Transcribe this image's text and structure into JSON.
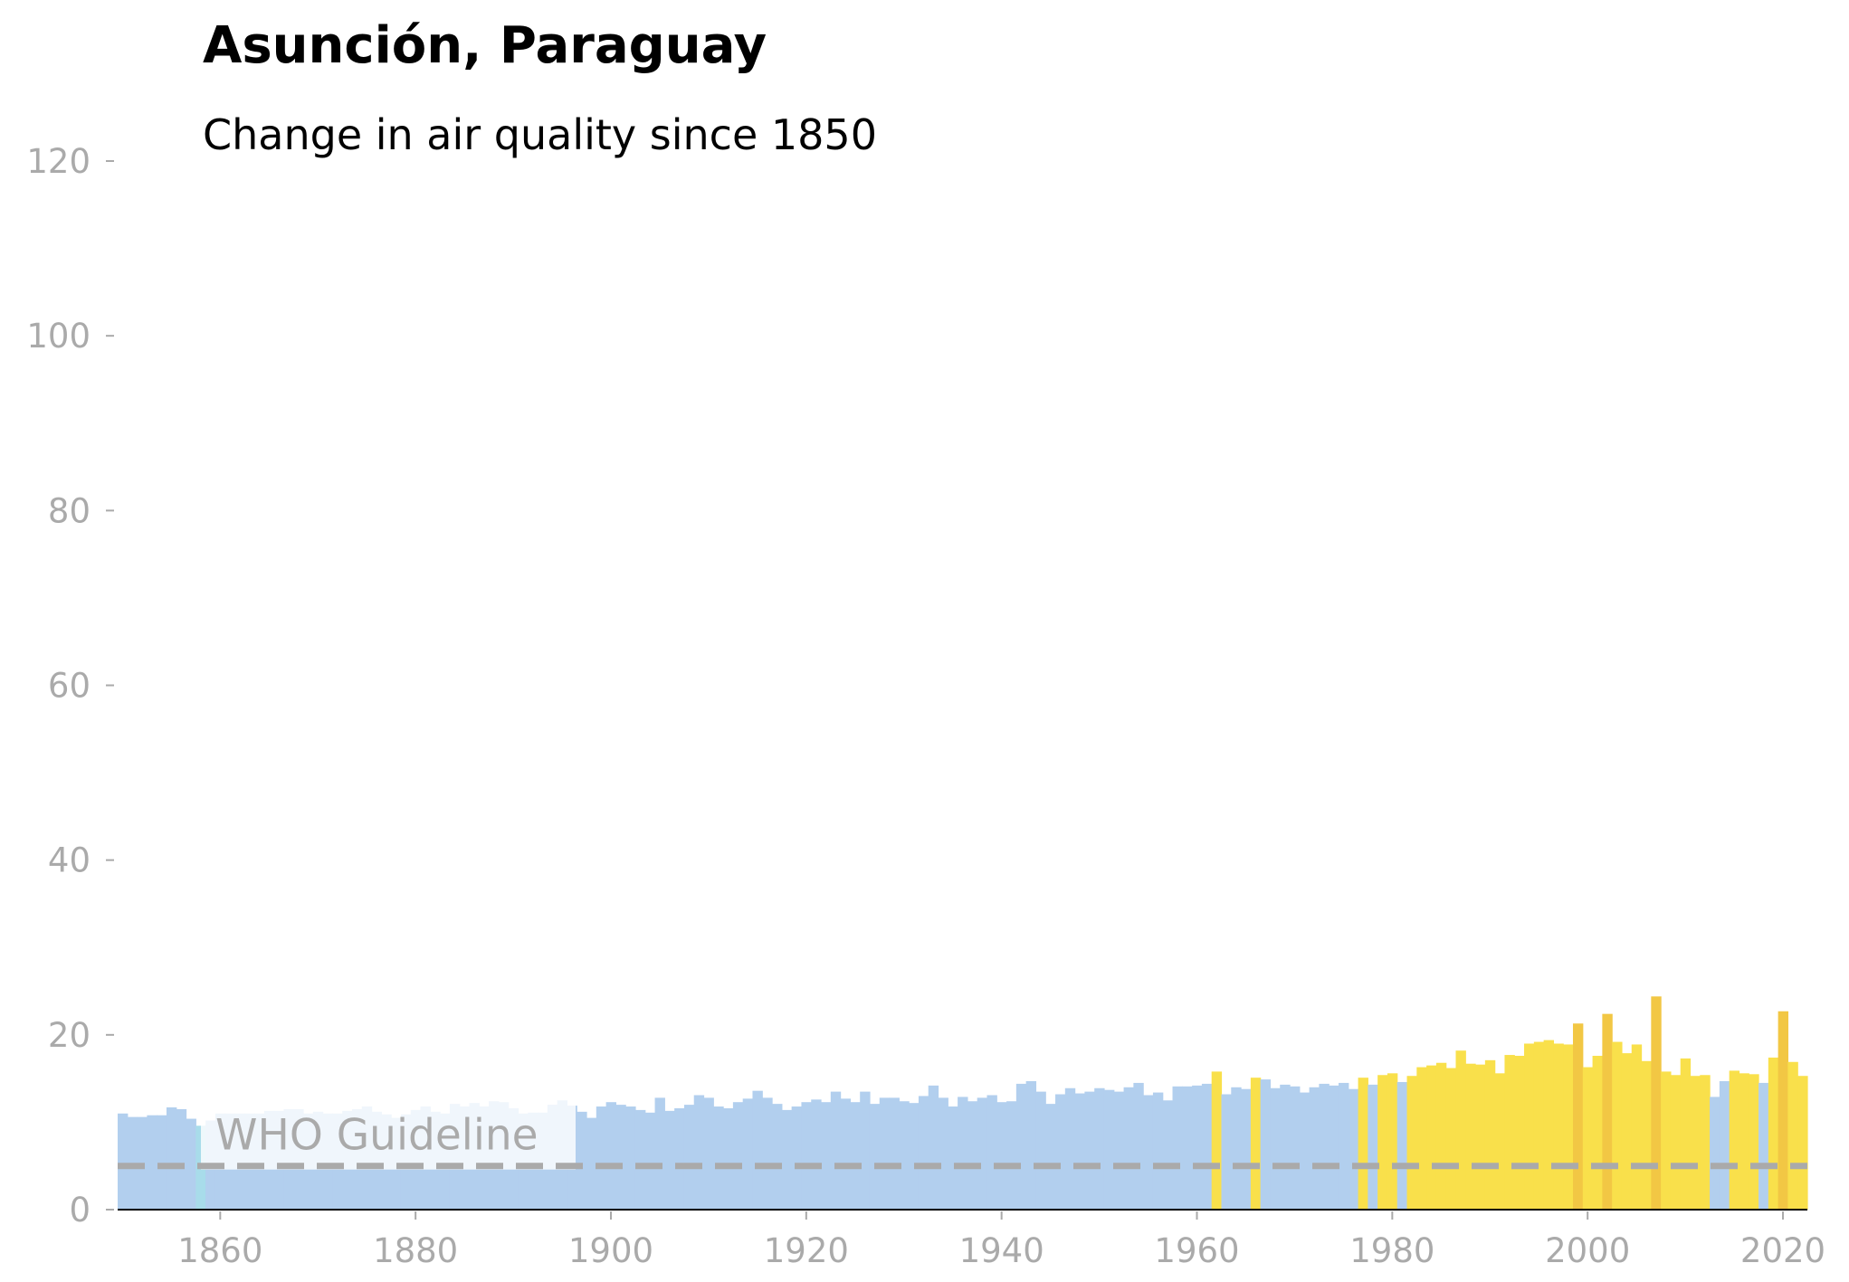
{
  "chart_data": {
    "type": "bar",
    "title": "Asunción, Paraguay",
    "subtitle": "Change in air quality since 1850",
    "xlabel": "",
    "ylabel": "",
    "x_start": 1850,
    "values": [
      11.0,
      10.6,
      10.6,
      10.8,
      10.8,
      11.7,
      11.5,
      10.4,
      9.6,
      10.2,
      11.0,
      11.0,
      11.0,
      11.0,
      11.0,
      11.3,
      11.3,
      11.5,
      11.5,
      11.0,
      11.2,
      11.0,
      11.0,
      11.3,
      11.5,
      11.8,
      11.2,
      10.9,
      10.5,
      10.9,
      11.4,
      11.8,
      11.2,
      11.0,
      12.1,
      11.8,
      12.2,
      11.8,
      12.4,
      12.3,
      11.6,
      11.0,
      11.1,
      11.1,
      12.0,
      12.5,
      11.9,
      11.2,
      10.5,
      11.8,
      12.3,
      12.0,
      11.8,
      11.4,
      11.1,
      12.8,
      11.3,
      11.6,
      12.0,
      13.1,
      12.8,
      11.8,
      11.6,
      12.3,
      12.7,
      13.6,
      12.8,
      12.1,
      11.4,
      11.8,
      12.3,
      12.6,
      12.3,
      13.5,
      12.7,
      12.3,
      13.5,
      12.1,
      12.8,
      12.8,
      12.4,
      12.2,
      13.0,
      14.2,
      12.8,
      11.8,
      12.9,
      12.4,
      12.8,
      13.1,
      12.3,
      12.4,
      14.4,
      14.7,
      13.5,
      12.1,
      13.2,
      13.9,
      13.3,
      13.5,
      13.9,
      13.7,
      13.5,
      14.0,
      14.5,
      13.1,
      13.4,
      12.5,
      14.1,
      14.1,
      14.2,
      14.4,
      15.8,
      13.2,
      14.0,
      13.8,
      15.1,
      14.9,
      13.9,
      14.3,
      14.1,
      13.4,
      14.0,
      14.4,
      14.2,
      14.5,
      13.8,
      15.1,
      14.3,
      15.4,
      15.6,
      14.6,
      15.3,
      16.3,
      16.5,
      16.8,
      16.2,
      18.2,
      16.7,
      16.6,
      17.1,
      15.6,
      17.7,
      17.6,
      19.0,
      19.2,
      19.4,
      19.0,
      18.9,
      21.3,
      16.3,
      17.6,
      22.4,
      19.2,
      17.9,
      18.9,
      17.0,
      24.4,
      15.8,
      15.4,
      17.3,
      15.3,
      15.4,
      12.9,
      14.7,
      15.9,
      15.6,
      15.5,
      14.5,
      17.4,
      22.7,
      16.9,
      15.3
    ],
    "ylim": [
      0,
      120
    ],
    "xlim": [
      1849.5,
      2022.5
    ],
    "yticks": [
      0,
      20,
      40,
      60,
      80,
      100,
      120
    ],
    "xticks": [
      1860,
      1880,
      1900,
      1920,
      1940,
      1960,
      1980,
      2000,
      2020
    ],
    "grid": false,
    "colors": {
      "low": "#b2cfee",
      "very_low": "#a8dcea",
      "moderate": "#f9e04b",
      "high": "#f2c744",
      "guideline": "#aaaaaa"
    },
    "guideline": {
      "value": 5,
      "label": "WHO Guideline"
    }
  }
}
